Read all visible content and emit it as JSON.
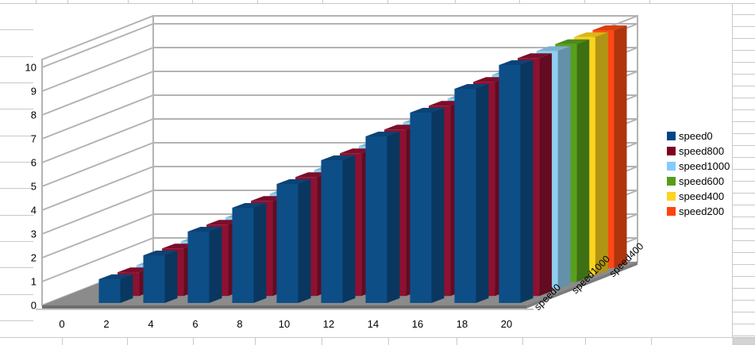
{
  "chart_data": {
    "type": "bar",
    "view": "3d-deep",
    "title": "",
    "xlabel": "",
    "ylabel": "",
    "categories": [
      0,
      2,
      4,
      6,
      8,
      10,
      12,
      14,
      16,
      18,
      20
    ],
    "series": [
      {
        "name": "speed0",
        "color": "#004586",
        "bar_color": "#0d4e87",
        "values": [
          0,
          1,
          2,
          3,
          4,
          5,
          6,
          7,
          8,
          9,
          10
        ]
      },
      {
        "name": "speed800",
        "color": "#7e0021",
        "bar_color": "#8f1031",
        "values": [
          0,
          1,
          2,
          3,
          4,
          5,
          6,
          7,
          8,
          9,
          10
        ]
      },
      {
        "name": "speed1000",
        "color": "#83caff",
        "bar_color": "#8fcef2",
        "values": [
          0,
          1,
          2,
          3,
          4,
          5,
          6,
          7,
          8,
          9,
          10
        ]
      },
      {
        "name": "speed600",
        "color": "#579d1c",
        "bar_color": "#57a01d",
        "values": [
          0,
          1,
          2,
          3,
          4,
          5,
          6,
          7,
          8,
          9,
          10
        ]
      },
      {
        "name": "speed400",
        "color": "#ffd320",
        "bar_color": "#fdd41d",
        "values": [
          0,
          1,
          2,
          3,
          4,
          5,
          6,
          7,
          8,
          9,
          10
        ]
      },
      {
        "name": "speed200",
        "color": "#ff420e",
        "bar_color": "#fb4a14",
        "values": [
          0,
          1,
          2,
          3,
          4,
          5,
          6,
          7,
          8,
          9,
          10
        ]
      }
    ],
    "value_axis": {
      "min": 0,
      "max": 10,
      "tick": 1,
      "labels": [
        "0",
        "1",
        "2",
        "3",
        "4",
        "5",
        "6",
        "7",
        "8",
        "9",
        "10"
      ]
    },
    "category_axis_labels": [
      "0",
      "2",
      "4",
      "6",
      "8",
      "10",
      "12",
      "14",
      "16",
      "18",
      "20"
    ],
    "depth_axis_labels": [
      "speed0",
      "speed1000",
      "speed400"
    ],
    "legend_position": "right",
    "grid": true,
    "colors": {
      "wall": "#ffffff",
      "grid_line": "#b3b3b3",
      "floor_top": "#8b8b8b",
      "floor_edge": "#6e6e6e",
      "sheet_grid": "#c9c9c9",
      "text": "#000000",
      "corner_fill": "#d4d4d4"
    }
  }
}
